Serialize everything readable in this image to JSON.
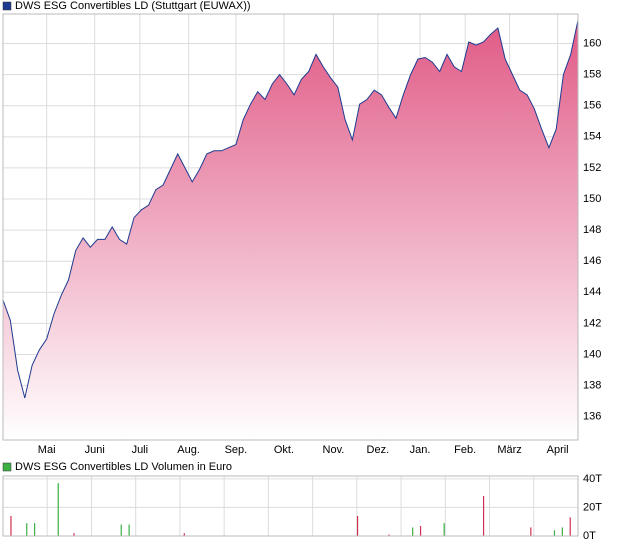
{
  "chart_data": [
    {
      "type": "area",
      "legend": "DWS ESG Convertibles LD (Stuttgart (EUWAX))",
      "color": "#1f3b8f",
      "fill_top": "#e05a86",
      "fill_bottom": "#ffffff",
      "values": [
        143.5,
        142.2,
        139.0,
        137.2,
        139.3,
        140.3,
        141.0,
        142.6,
        143.8,
        144.8,
        146.7,
        147.5,
        146.9,
        147.4,
        147.4,
        148.2,
        147.4,
        147.1,
        148.8,
        149.3,
        149.6,
        150.6,
        150.9,
        151.9,
        152.9,
        152.0,
        151.1,
        151.9,
        152.9,
        153.1,
        153.1,
        153.3,
        153.5,
        155.1,
        156.1,
        156.9,
        156.4,
        157.4,
        158.0,
        157.4,
        156.7,
        157.7,
        158.2,
        159.3,
        158.5,
        157.8,
        157.2,
        155.1,
        153.8,
        156.1,
        156.4,
        157.0,
        156.7,
        155.9,
        155.2,
        156.7,
        158.0,
        159.0,
        159.1,
        158.8,
        158.2,
        159.3,
        158.5,
        158.2,
        160.1,
        159.9,
        160.1,
        160.6,
        161.0,
        159.0,
        158.0,
        157.0,
        156.7,
        155.8,
        154.5,
        153.3,
        154.5,
        158.0,
        159.3,
        161.5
      ],
      "xlim": [
        0,
        79
      ],
      "ylim": [
        134.5,
        161.9
      ],
      "yticks": [
        136,
        138,
        140,
        142,
        144,
        146,
        148,
        150,
        152,
        154,
        156,
        158,
        160
      ],
      "grid": true,
      "xticks": [
        {
          "value": 6,
          "label": "Mai"
        },
        {
          "value": 12.6,
          "label": "Juni"
        },
        {
          "value": 18.8,
          "label": "Juli"
        },
        {
          "value": 25.5,
          "label": "Aug."
        },
        {
          "value": 32,
          "label": "Sep."
        },
        {
          "value": 38.6,
          "label": "Okt."
        },
        {
          "value": 45.4,
          "label": "Nov."
        },
        {
          "value": 51.5,
          "label": "Dez."
        },
        {
          "value": 57.3,
          "label": "Jan."
        },
        {
          "value": 63.5,
          "label": "Feb."
        },
        {
          "value": 69.6,
          "label": "März"
        },
        {
          "value": 76.2,
          "label": "April"
        }
      ]
    },
    {
      "type": "bar",
      "legend": "DWS ESG Convertibles LD Volumen in Euro",
      "color": "#3cb043",
      "x": [
        1,
        3,
        4,
        7,
        9,
        15,
        16,
        23,
        45,
        49,
        52,
        53,
        56,
        61,
        67,
        70,
        71,
        72
      ],
      "values": [
        14000,
        9000,
        9000,
        37000,
        2000,
        8000,
        8000,
        2000,
        14000,
        1000,
        6000,
        7000,
        9000,
        28000,
        6000,
        4000,
        6000,
        13000
      ],
      "colors": [
        "#d03050",
        "#3cb043",
        "#3cb043",
        "#3cb043",
        "#d03050",
        "#3cb043",
        "#3cb043",
        "#d03050",
        "#d03050",
        "#d03050",
        "#3cb043",
        "#d03050",
        "#3cb043",
        "#d03050",
        "#d03050",
        "#3cb043",
        "#3cb043",
        "#d03050"
      ],
      "xlim": [
        0,
        73
      ],
      "ylim": [
        0,
        42000
      ],
      "yticks": [
        {
          "value": 0,
          "label": "0T"
        },
        {
          "value": 20000,
          "label": "20T"
        },
        {
          "value": 40000,
          "label": "40T"
        }
      ],
      "grid": true
    }
  ]
}
